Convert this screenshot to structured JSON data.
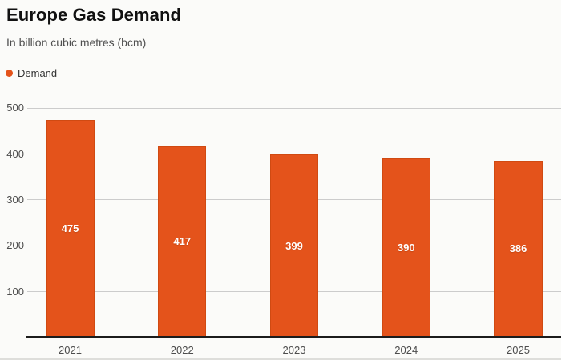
{
  "header": {
    "title": "Europe Gas Demand",
    "subtitle": "In billion cubic metres (bcm)"
  },
  "legend": {
    "label": "Demand",
    "color": "#e4531b"
  },
  "chart_data": {
    "type": "bar",
    "title": "Europe Gas Demand",
    "subtitle": "In billion cubic metres (bcm)",
    "categories": [
      "2021",
      "2022",
      "2023",
      "2024",
      "2025"
    ],
    "series": [
      {
        "name": "Demand",
        "values": [
          475,
          417,
          399,
          390,
          386
        ]
      }
    ],
    "value_labels": [
      "475",
      "417",
      "399",
      "390",
      "386"
    ],
    "xlabel": "",
    "ylabel": "",
    "ylim": [
      0,
      500
    ],
    "yticks": [
      100,
      200,
      300,
      400,
      500
    ],
    "grid": true,
    "legend_position": "top-left",
    "bar_color": "#e4531b",
    "bar_border_color": "#d04a12",
    "gridline_color": "#cccccc",
    "axis_line_color": "#1c1c1c",
    "background_color": "#fbfbf9"
  }
}
